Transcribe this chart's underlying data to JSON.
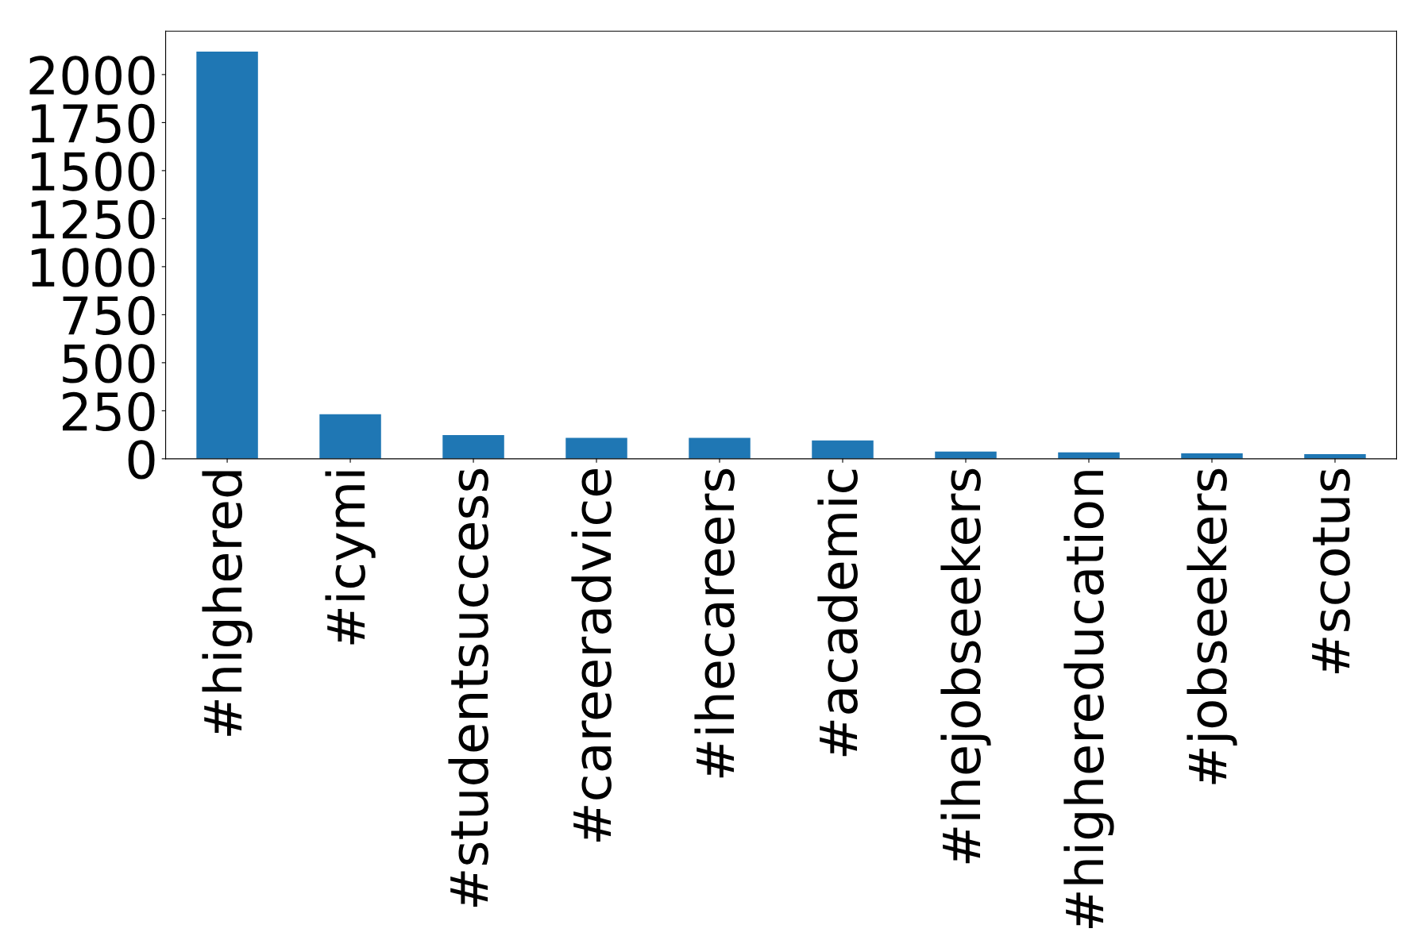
{
  "chart_data": {
    "type": "bar",
    "categories": [
      "#highered",
      "#icymi",
      "#studentsuccess",
      "#careeradvice",
      "#ihecareers",
      "#academic",
      "#ihejobseekers",
      "#highereducation",
      "#jobseekers",
      "#scotus"
    ],
    "values": [
      2120,
      232,
      123,
      109,
      109,
      95,
      38,
      33,
      28,
      24
    ],
    "color": "#1f77b4",
    "ylim": [
      0,
      2226
    ],
    "yticks": [
      0,
      250,
      500,
      750,
      1000,
      1250,
      1500,
      1750,
      2000
    ],
    "grid": false,
    "legend": false
  }
}
